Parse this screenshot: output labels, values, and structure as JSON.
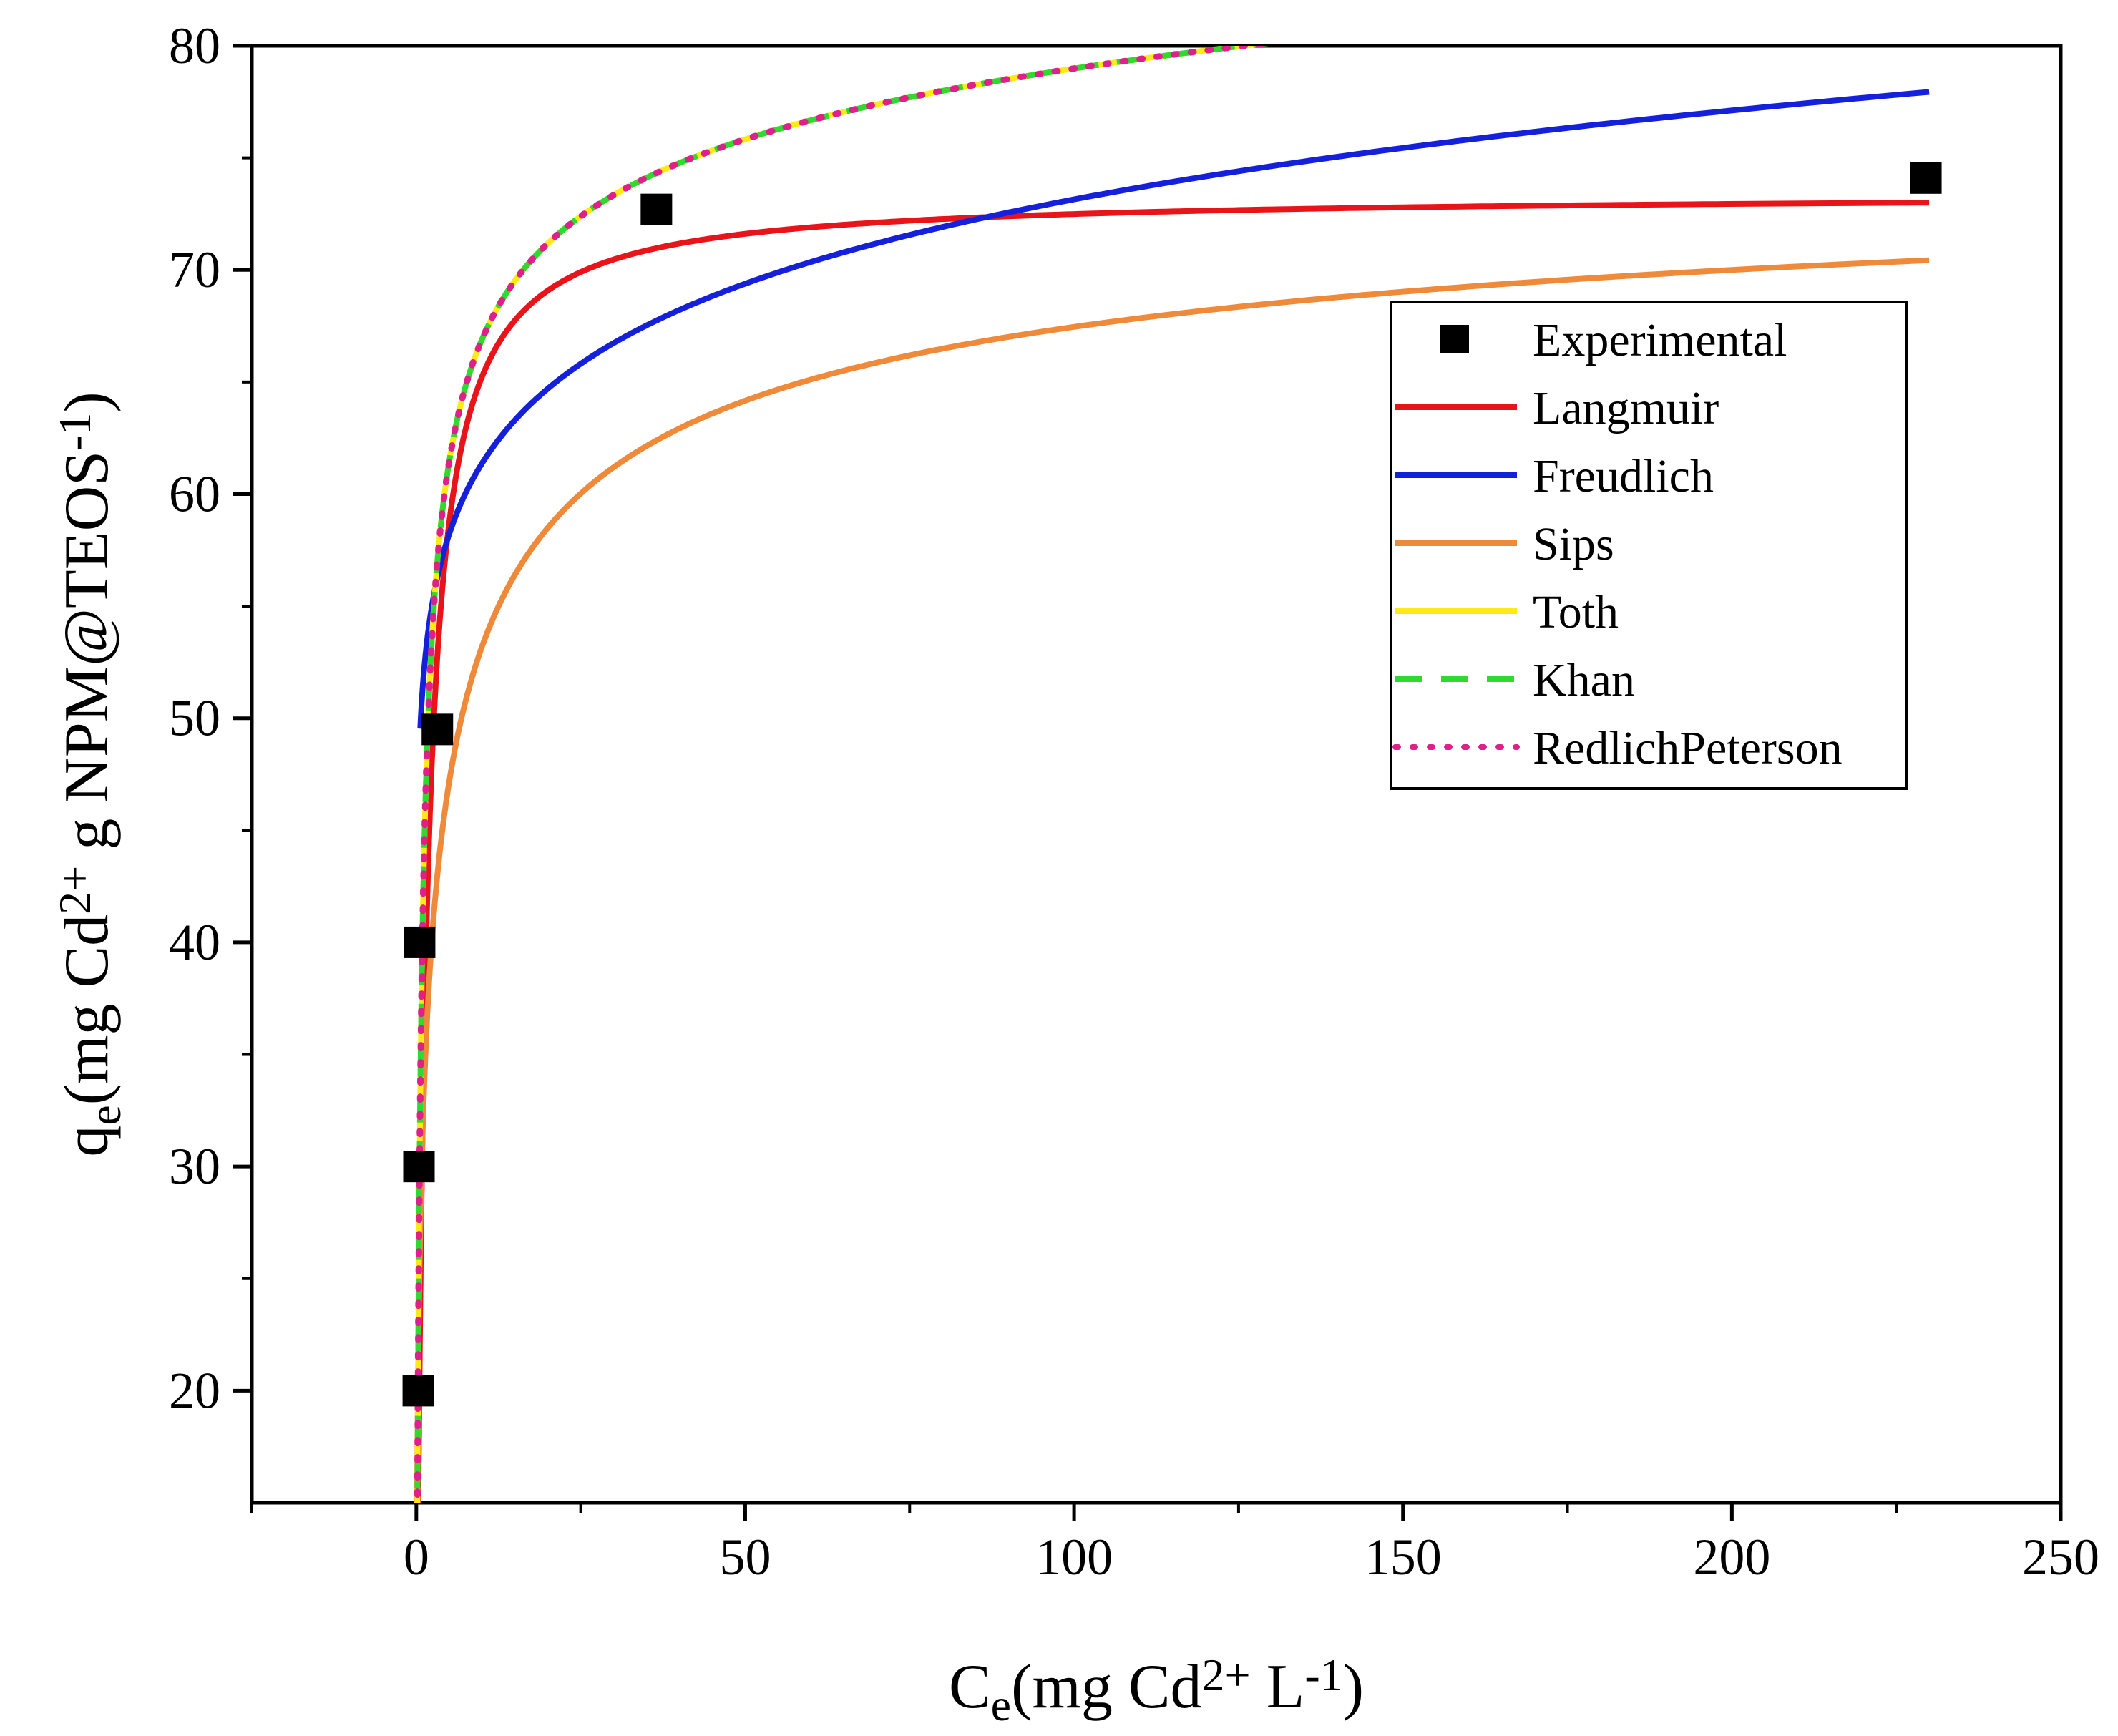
{
  "chart_data": {
    "type": "scatter",
    "title": "",
    "xlabel": {
      "parts": [
        {
          "text": "C",
          "style": "normal"
        },
        {
          "text": "e",
          "style": "sub"
        },
        {
          "text": "(mg Cd",
          "style": "normal"
        },
        {
          "text": "2+",
          "style": "sup"
        },
        {
          "text": " L",
          "style": "normal"
        },
        {
          "text": "-1",
          "style": "sup"
        },
        {
          "text": ")",
          "style": "normal"
        }
      ]
    },
    "ylabel": {
      "parts": [
        {
          "text": "q",
          "style": "normal"
        },
        {
          "text": "e",
          "style": "sub"
        },
        {
          "text": "(mg Cd",
          "style": "normal"
        },
        {
          "text": "2+",
          "style": "sup"
        },
        {
          "text": " g NPM@TEOS",
          "style": "normal"
        },
        {
          "text": "-1",
          "style": "sup"
        },
        {
          "text": ")",
          "style": "normal"
        }
      ]
    },
    "xlim": [
      -25,
      250
    ],
    "ylim": [
      15,
      80
    ],
    "x_ticks": [
      0,
      50,
      100,
      150,
      200,
      250
    ],
    "x_tick_labels": [
      "0",
      "50",
      "100",
      "150",
      "200",
      "250"
    ],
    "y_ticks": [
      20,
      30,
      40,
      50,
      60,
      70,
      80
    ],
    "y_tick_labels": [
      "20",
      "30",
      "40",
      "50",
      "60",
      "70",
      "80"
    ],
    "grid": false,
    "legend_position": "upper-right",
    "series": [
      {
        "name": "Experimental",
        "kind": "markers",
        "color": "#000000",
        "x": [
          0.3,
          0.4,
          0.5,
          3.2,
          36.5,
          229.5
        ],
        "y": [
          20.0,
          30.0,
          40.0,
          49.5,
          72.7,
          74.1
        ]
      },
      {
        "name": "Langmuir",
        "kind": "line",
        "color": "#e8141a",
        "dash": "solid",
        "model": "langmuir",
        "params": {
          "qm": 73.4,
          "K": 0.8
        },
        "x_range": [
          0.3,
          230
        ]
      },
      {
        "name": "Freudlich",
        "kind": "line",
        "color": "#1420dc",
        "dash": "solid",
        "model": "freundlich",
        "params": {
          "Kf": 51.5,
          "n_inv": 0.0762
        },
        "x_range": [
          0.6,
          230
        ]
      },
      {
        "name": "Sips",
        "kind": "line",
        "color": "#ef8a3a",
        "dash": "solid",
        "model": "sips",
        "params": {
          "qm": 77.0,
          "K": 0.5,
          "n": 0.5
        },
        "x_range": [
          0.05,
          230
        ]
      },
      {
        "name": "Toth",
        "kind": "line",
        "color": "#ffea16",
        "dash": "solid",
        "model": "redlich-peterson",
        "params": {
          "K": 120.0,
          "a": 1.9,
          "beta": 0.95
        },
        "x_range": [
          0.05,
          230
        ]
      },
      {
        "name": "Khan",
        "kind": "line",
        "color": "#2fd92f",
        "dash": "dashed",
        "model": "redlich-peterson",
        "params": {
          "K": 120.0,
          "a": 1.9,
          "beta": 0.95
        },
        "x_range": [
          0.05,
          230
        ]
      },
      {
        "name": "RedlichPeterson",
        "kind": "line",
        "color": "#e0208a",
        "dash": "dotted",
        "model": "redlich-peterson",
        "params": {
          "K": 120.0,
          "a": 1.9,
          "beta": 0.95
        },
        "x_range": [
          0.05,
          230
        ]
      }
    ]
  }
}
